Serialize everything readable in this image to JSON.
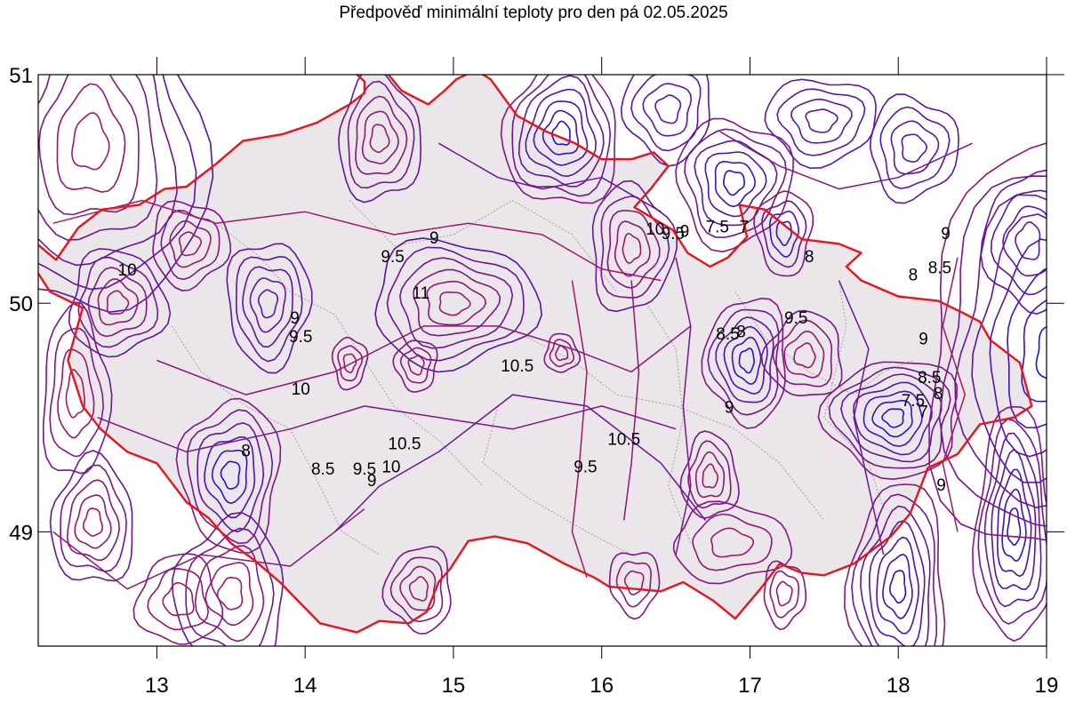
{
  "title": "Předpověď minimální teploty pro den pá 02.05.2025",
  "map": {
    "type": "contour-map",
    "x_ticks": [
      "13",
      "14",
      "15",
      "16",
      "17",
      "18",
      "19"
    ],
    "y_ticks": [
      "51",
      "50",
      "49"
    ],
    "x_range": [
      12.2,
      19.0
    ],
    "y_range": [
      48.5,
      51.0
    ],
    "colors": {
      "border": "#e8141c",
      "country_fill": "#ebe6ea",
      "district_lines": "#9a9a9a",
      "contour_warm": "#a0186a",
      "contour_cold": "#2a10d0"
    },
    "contour_labels": [
      {
        "text": "10",
        "lon": 12.8,
        "lat": 50.14
      },
      {
        "text": "9.5",
        "lon": 13.97,
        "lat": 49.85
      },
      {
        "text": "9",
        "lon": 13.93,
        "lat": 49.93
      },
      {
        "text": "10",
        "lon": 13.97,
        "lat": 49.62
      },
      {
        "text": "8",
        "lon": 13.6,
        "lat": 49.35
      },
      {
        "text": "8.5",
        "lon": 14.12,
        "lat": 49.27
      },
      {
        "text": "9.5",
        "lon": 14.4,
        "lat": 49.27
      },
      {
        "text": "9",
        "lon": 14.45,
        "lat": 49.22
      },
      {
        "text": "10",
        "lon": 14.58,
        "lat": 49.28
      },
      {
        "text": "10.5",
        "lon": 14.67,
        "lat": 49.38
      },
      {
        "text": "9.5",
        "lon": 14.59,
        "lat": 50.2
      },
      {
        "text": "9",
        "lon": 14.87,
        "lat": 50.28
      },
      {
        "text": "11",
        "lon": 14.78,
        "lat": 50.04
      },
      {
        "text": "10.5",
        "lon": 15.43,
        "lat": 49.72
      },
      {
        "text": "9.5",
        "lon": 15.89,
        "lat": 49.28
      },
      {
        "text": "10.5",
        "lon": 16.15,
        "lat": 49.4
      },
      {
        "text": "10",
        "lon": 16.36,
        "lat": 50.32
      },
      {
        "text": "9.5",
        "lon": 16.48,
        "lat": 50.3
      },
      {
        "text": "9",
        "lon": 16.56,
        "lat": 50.31
      },
      {
        "text": "7.5",
        "lon": 16.78,
        "lat": 50.33
      },
      {
        "text": "7",
        "lon": 16.96,
        "lat": 50.33
      },
      {
        "text": "8",
        "lon": 17.4,
        "lat": 50.2
      },
      {
        "text": "8.5",
        "lon": 16.85,
        "lat": 49.86
      },
      {
        "text": "8",
        "lon": 16.94,
        "lat": 49.87
      },
      {
        "text": "9.5",
        "lon": 17.31,
        "lat": 49.93
      },
      {
        "text": "9",
        "lon": 16.86,
        "lat": 49.54
      },
      {
        "text": "9",
        "lon": 18.32,
        "lat": 50.3
      },
      {
        "text": "8.5",
        "lon": 18.28,
        "lat": 50.15
      },
      {
        "text": "8",
        "lon": 18.1,
        "lat": 50.12
      },
      {
        "text": "9",
        "lon": 18.17,
        "lat": 49.84
      },
      {
        "text": "8.5",
        "lon": 18.21,
        "lat": 49.67
      },
      {
        "text": "7.5",
        "lon": 18.1,
        "lat": 49.57
      },
      {
        "text": "8",
        "lon": 18.27,
        "lat": 49.6
      },
      {
        "text": "7",
        "lon": 18.17,
        "lat": 49.52
      },
      {
        "text": "9",
        "lon": 18.29,
        "lat": 49.2
      }
    ],
    "blobs": [
      {
        "lon": 12.55,
        "lat": 50.7,
        "rx": 0.12,
        "ry": 0.12,
        "rings": 7,
        "kind": "warm"
      },
      {
        "lon": 12.73,
        "lat": 50.0,
        "rx": 0.07,
        "ry": 0.05,
        "rings": 5,
        "kind": "warm"
      },
      {
        "lon": 13.22,
        "lat": 50.26,
        "rx": 0.07,
        "ry": 0.05,
        "rings": 4,
        "kind": "warm"
      },
      {
        "lon": 13.75,
        "lat": 50.0,
        "rx": 0.06,
        "ry": 0.06,
        "rings": 5,
        "kind": "mixed"
      },
      {
        "lon": 13.5,
        "lat": 49.25,
        "rx": 0.06,
        "ry": 0.06,
        "rings": 6,
        "kind": "cold"
      },
      {
        "lon": 13.5,
        "lat": 48.73,
        "rx": 0.08,
        "ry": 0.07,
        "rings": 5,
        "kind": "warm"
      },
      {
        "lon": 12.57,
        "lat": 49.04,
        "rx": 0.06,
        "ry": 0.06,
        "rings": 5,
        "kind": "warm"
      },
      {
        "lon": 14.5,
        "lat": 50.72,
        "rx": 0.06,
        "ry": 0.06,
        "rings": 5,
        "kind": "warm"
      },
      {
        "lon": 15.0,
        "lat": 50.0,
        "rx": 0.1,
        "ry": 0.05,
        "rings": 6,
        "kind": "warm"
      },
      {
        "lon": 14.3,
        "lat": 49.74,
        "rx": 0.04,
        "ry": 0.04,
        "rings": 3,
        "kind": "warm"
      },
      {
        "lon": 14.75,
        "lat": 49.73,
        "rx": 0.05,
        "ry": 0.04,
        "rings": 3,
        "kind": "warm"
      },
      {
        "lon": 14.77,
        "lat": 48.75,
        "rx": 0.06,
        "ry": 0.05,
        "rings": 4,
        "kind": "warm"
      },
      {
        "lon": 15.73,
        "lat": 50.74,
        "rx": 0.06,
        "ry": 0.05,
        "rings": 7,
        "kind": "cold"
      },
      {
        "lon": 15.73,
        "lat": 49.78,
        "rx": 0.04,
        "ry": 0.03,
        "rings": 3,
        "kind": "warm"
      },
      {
        "lon": 16.2,
        "lat": 50.24,
        "rx": 0.06,
        "ry": 0.06,
        "rings": 5,
        "kind": "warm"
      },
      {
        "lon": 16.89,
        "lat": 50.53,
        "rx": 0.07,
        "ry": 0.05,
        "rings": 6,
        "kind": "cold"
      },
      {
        "lon": 17.23,
        "lat": 50.31,
        "rx": 0.05,
        "ry": 0.05,
        "rings": 4,
        "kind": "cold"
      },
      {
        "lon": 16.98,
        "lat": 49.75,
        "rx": 0.05,
        "ry": 0.05,
        "rings": 6,
        "kind": "cold"
      },
      {
        "lon": 17.37,
        "lat": 49.77,
        "rx": 0.07,
        "ry": 0.05,
        "rings": 4,
        "kind": "warm"
      },
      {
        "lon": 16.73,
        "lat": 49.24,
        "rx": 0.05,
        "ry": 0.05,
        "rings": 4,
        "kind": "warm"
      },
      {
        "lon": 16.87,
        "lat": 48.95,
        "rx": 0.14,
        "ry": 0.06,
        "rings": 3,
        "kind": "warm"
      },
      {
        "lon": 17.23,
        "lat": 48.73,
        "rx": 0.05,
        "ry": 0.05,
        "rings": 3,
        "kind": "warm"
      },
      {
        "lon": 16.22,
        "lat": 48.78,
        "rx": 0.06,
        "ry": 0.05,
        "rings": 3,
        "kind": "warm"
      },
      {
        "lon": 17.97,
        "lat": 49.5,
        "rx": 0.07,
        "ry": 0.04,
        "rings": 7,
        "kind": "cold"
      },
      {
        "lon": 18.0,
        "lat": 48.76,
        "rx": 0.05,
        "ry": 0.07,
        "rings": 7,
        "kind": "cold"
      },
      {
        "lon": 18.78,
        "lat": 49.02,
        "rx": 0.04,
        "ry": 0.08,
        "rings": 7,
        "kind": "cold"
      },
      {
        "lon": 19.05,
        "lat": 49.78,
        "rx": 0.12,
        "ry": 0.12,
        "rings": 8,
        "kind": "cold"
      },
      {
        "lon": 18.1,
        "lat": 50.68,
        "rx": 0.08,
        "ry": 0.06,
        "rings": 4,
        "kind": "mixed"
      },
      {
        "lon": 17.48,
        "lat": 50.8,
        "rx": 0.1,
        "ry": 0.05,
        "rings": 4,
        "kind": "mixed"
      },
      {
        "lon": 16.45,
        "lat": 50.85,
        "rx": 0.08,
        "ry": 0.06,
        "rings": 4,
        "kind": "mixed"
      },
      {
        "lon": 18.88,
        "lat": 50.27,
        "rx": 0.08,
        "ry": 0.08,
        "rings": 4,
        "kind": "mixed"
      },
      {
        "lon": 13.15,
        "lat": 48.7,
        "rx": 0.1,
        "ry": 0.07,
        "rings": 3,
        "kind": "warm"
      },
      {
        "lon": 12.45,
        "lat": 49.6,
        "rx": 0.06,
        "ry": 0.1,
        "rings": 4,
        "kind": "warm"
      }
    ],
    "border": [
      [
        12.1,
        50.31
      ],
      [
        12.32,
        50.19
      ],
      [
        12.47,
        50.33
      ],
      [
        12.63,
        50.41
      ],
      [
        12.88,
        50.43
      ],
      [
        13.05,
        50.5
      ],
      [
        13.2,
        50.51
      ],
      [
        13.4,
        50.61
      ],
      [
        13.58,
        50.71
      ],
      [
        13.85,
        50.74
      ],
      [
        14.08,
        50.79
      ],
      [
        14.3,
        50.87
      ],
      [
        14.4,
        50.92
      ],
      [
        14.4,
        50.97
      ],
      [
        14.3,
        51.03
      ],
      [
        14.55,
        51.01
      ],
      [
        14.65,
        50.93
      ],
      [
        14.83,
        50.87
      ],
      [
        14.94,
        50.93
      ],
      [
        15.02,
        50.98
      ],
      [
        15.15,
        51.02
      ],
      [
        15.25,
        50.98
      ],
      [
        15.43,
        50.82
      ],
      [
        15.63,
        50.75
      ],
      [
        15.82,
        50.7
      ],
      [
        16.0,
        50.63
      ],
      [
        16.2,
        50.63
      ],
      [
        16.35,
        50.66
      ],
      [
        16.45,
        50.6
      ],
      [
        16.33,
        50.5
      ],
      [
        16.22,
        50.42
      ],
      [
        16.35,
        50.37
      ],
      [
        16.48,
        50.32
      ],
      [
        16.58,
        50.22
      ],
      [
        16.73,
        50.16
      ],
      [
        16.85,
        50.2
      ],
      [
        16.98,
        50.29
      ],
      [
        16.93,
        50.43
      ],
      [
        17.1,
        50.41
      ],
      [
        17.35,
        50.28
      ],
      [
        17.6,
        50.26
      ],
      [
        17.75,
        50.22
      ],
      [
        17.65,
        50.16
      ],
      [
        17.75,
        50.1
      ],
      [
        18.0,
        50.03
      ],
      [
        18.27,
        50.01
      ],
      [
        18.43,
        49.96
      ],
      [
        18.55,
        49.92
      ],
      [
        18.62,
        49.84
      ],
      [
        18.82,
        49.74
      ],
      [
        18.9,
        49.55
      ],
      [
        18.78,
        49.5
      ],
      [
        18.55,
        49.47
      ],
      [
        18.4,
        49.34
      ],
      [
        18.2,
        49.28
      ],
      [
        18.08,
        49.08
      ],
      [
        17.95,
        48.98
      ],
      [
        17.7,
        48.86
      ],
      [
        17.5,
        48.81
      ],
      [
        17.35,
        48.82
      ],
      [
        17.2,
        48.86
      ],
      [
        17.07,
        48.75
      ],
      [
        16.9,
        48.62
      ],
      [
        16.75,
        48.7
      ],
      [
        16.55,
        48.78
      ],
      [
        16.4,
        48.74
      ],
      [
        16.05,
        48.76
      ],
      [
        15.95,
        48.8
      ],
      [
        15.75,
        48.86
      ],
      [
        15.5,
        48.95
      ],
      [
        15.28,
        48.98
      ],
      [
        15.1,
        48.96
      ],
      [
        14.98,
        48.84
      ],
      [
        14.9,
        48.78
      ],
      [
        14.82,
        48.65
      ],
      [
        14.7,
        48.6
      ],
      [
        14.5,
        48.61
      ],
      [
        14.35,
        48.56
      ],
      [
        14.1,
        48.6
      ],
      [
        13.95,
        48.7
      ],
      [
        13.83,
        48.78
      ],
      [
        13.65,
        48.88
      ],
      [
        13.5,
        48.95
      ],
      [
        13.35,
        49.06
      ],
      [
        13.2,
        49.13
      ],
      [
        13.0,
        49.3
      ],
      [
        12.8,
        49.35
      ],
      [
        12.62,
        49.45
      ],
      [
        12.5,
        49.55
      ],
      [
        12.4,
        49.75
      ],
      [
        12.5,
        49.98
      ],
      [
        12.28,
        50.05
      ],
      [
        12.18,
        50.15
      ],
      [
        12.1,
        50.31
      ]
    ]
  }
}
